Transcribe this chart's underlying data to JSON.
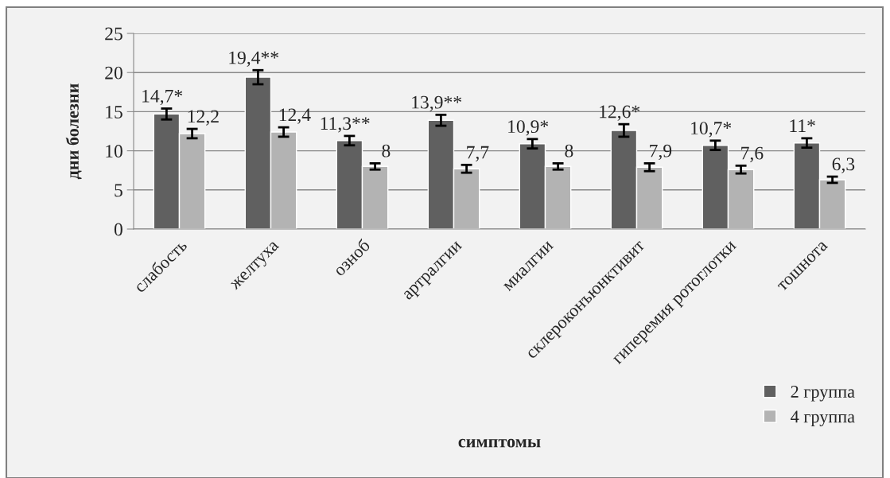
{
  "chart_data": {
    "type": "bar",
    "xlabel": "симптомы",
    "ylabel": "дни болезни",
    "categories": [
      "слабость",
      "желтуха",
      "озноб",
      "артралгии",
      "миалгии",
      "склероконъюнктивит",
      "гиперемия ротоглотки",
      "тошнота"
    ],
    "series": [
      {
        "name": "2 группа",
        "color": "#606060",
        "values": [
          14.7,
          19.4,
          11.3,
          13.9,
          10.9,
          12.6,
          10.7,
          11
        ],
        "errors": [
          0.7,
          0.9,
          0.6,
          0.7,
          0.6,
          0.8,
          0.6,
          0.6
        ],
        "value_labels": [
          "14,7*",
          "19,4**",
          "11,3**",
          "13,9**",
          "10,9*",
          "12,6*",
          "10,7*",
          "11*"
        ]
      },
      {
        "name": "4 группа",
        "color": "#b3b3b3",
        "values": [
          12.2,
          12.4,
          8,
          7.7,
          8,
          7.9,
          7.6,
          6.3
        ],
        "errors": [
          0.6,
          0.6,
          0.4,
          0.5,
          0.4,
          0.5,
          0.5,
          0.4
        ],
        "value_labels": [
          "12,2",
          "12,4",
          "8",
          "7,7",
          "8",
          "7,9",
          "7,6",
          "6,3"
        ]
      }
    ],
    "ylim": [
      0,
      25
    ],
    "yticks": [
      0,
      5,
      10,
      15,
      20,
      25
    ],
    "grid": "y",
    "legend": "bottom right"
  }
}
